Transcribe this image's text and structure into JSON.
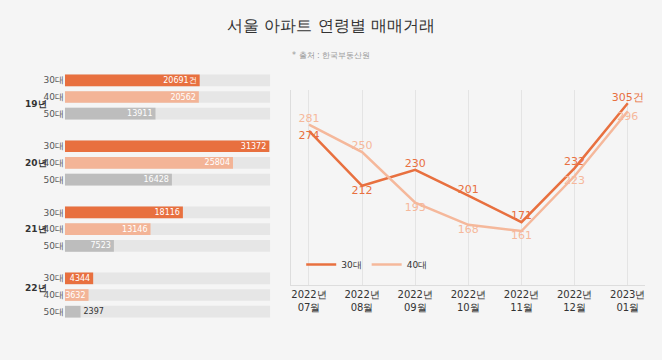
{
  "title": "서울 아파트 연령별 매매거래",
  "source": "* 출처 : 한국부동산원",
  "chart_data": [
    {
      "type": "bar",
      "orientation": "horizontal",
      "data_labels": true,
      "tick_labels": "y",
      "categories": [
        "30대",
        "40대",
        "50대"
      ],
      "colors": [
        "#e8703f",
        "#f3b497",
        "#bdbdbd"
      ],
      "xlim": [
        0,
        31500
      ],
      "panels": [
        {
          "label": "19년",
          "values": [
            20691,
            20562,
            13911
          ],
          "value_labels": [
            "20691건",
            "20562",
            "13911"
          ]
        },
        {
          "label": "20년",
          "values": [
            31372,
            25804,
            16428
          ]
        },
        {
          "label": "21년",
          "values": [
            18116,
            13146,
            7523
          ]
        },
        {
          "label": "22년",
          "values": [
            4344,
            3632,
            2397
          ]
        }
      ]
    },
    {
      "type": "line",
      "data_labels": true,
      "tick_labels": "x",
      "grid": true,
      "legend": "lower left",
      "marker": "none",
      "line_style": "solid",
      "categories": [
        "2022년 07월",
        "2022년 08월",
        "2022년 09월",
        "2022년 10월",
        "2022년 11월",
        "2022년 12월",
        "2023년 01월"
      ],
      "ylim": [
        100,
        320
      ],
      "series": [
        {
          "name": "30대",
          "color": "#e8703f",
          "values": [
            274,
            212,
            230,
            201,
            171,
            232,
            305
          ],
          "value_labels": [
            "274",
            "212",
            "230",
            "201",
            "171",
            "232",
            "305건"
          ]
        },
        {
          "name": "40대",
          "color": "#f5b89b",
          "values": [
            281,
            250,
            193,
            168,
            161,
            223,
            296
          ]
        }
      ]
    }
  ]
}
